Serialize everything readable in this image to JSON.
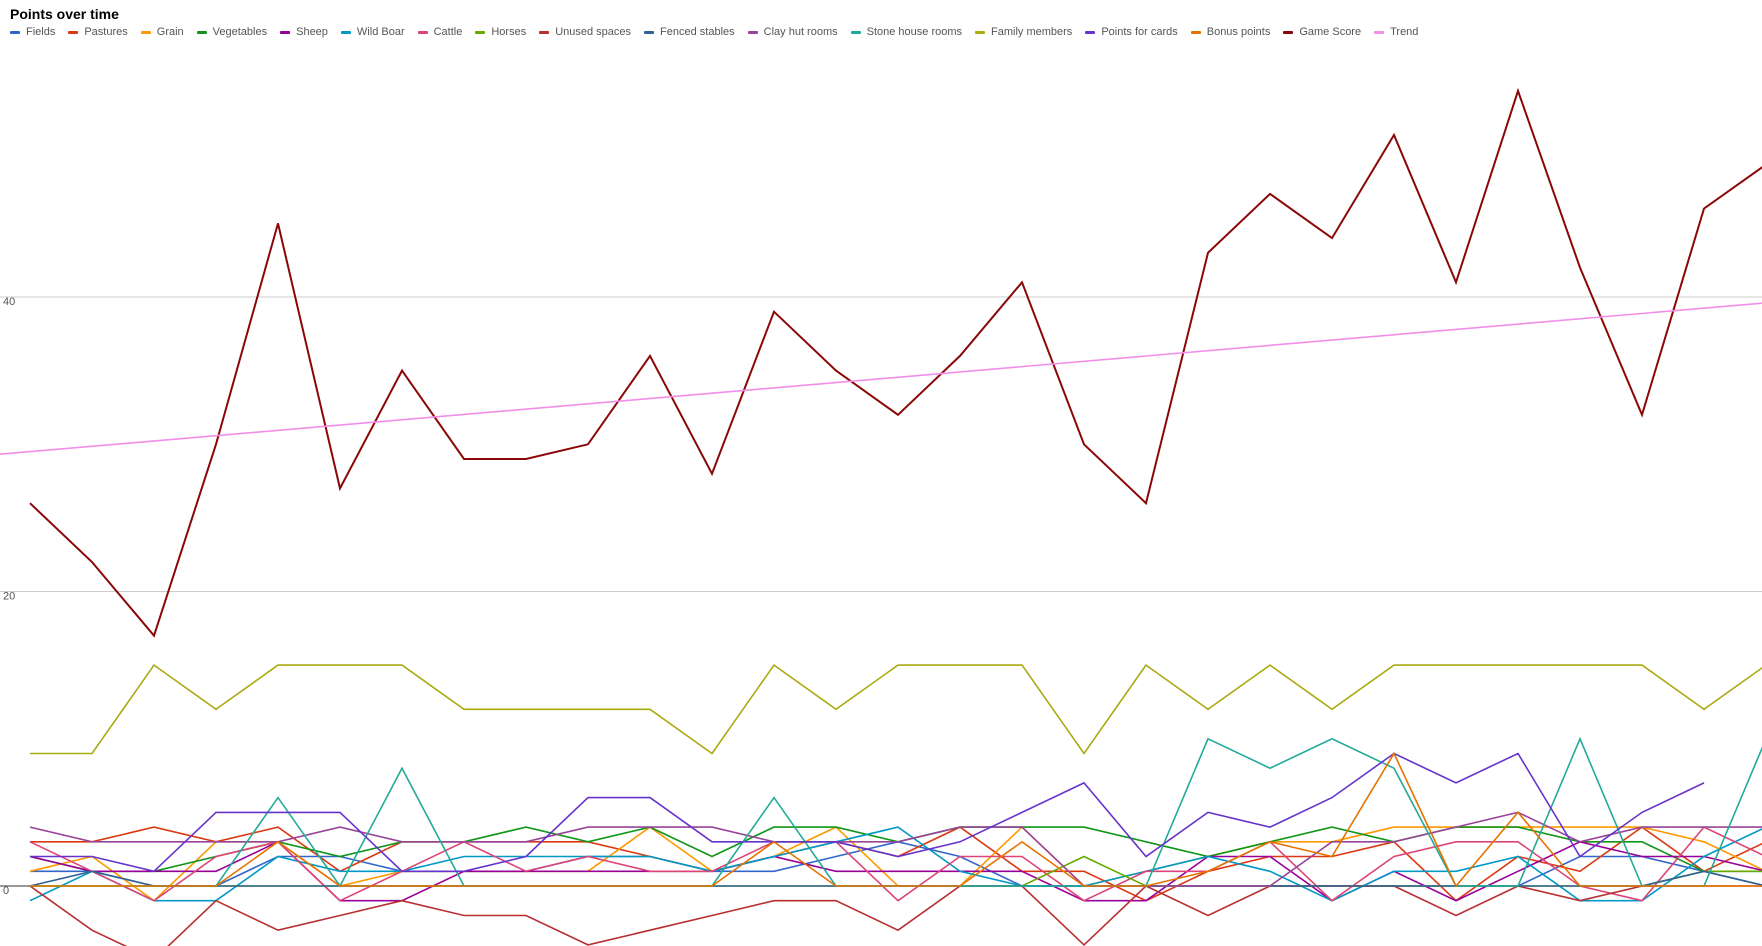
{
  "chart_data": {
    "type": "line",
    "title": "Points over time",
    "xlabel": "",
    "ylabel": "",
    "ylim": [
      -4,
      56
    ],
    "yticks": [
      0,
      20,
      40
    ],
    "grid": true,
    "legend_position": "top-left",
    "x": [
      1,
      2,
      3,
      4,
      5,
      6,
      7,
      8,
      9,
      10,
      11,
      12,
      13,
      14,
      15,
      16,
      17,
      18,
      19,
      20,
      21,
      22,
      23,
      24,
      25,
      26,
      27,
      28,
      29
    ],
    "series": [
      {
        "name": "Fields",
        "color": "#3366cc",
        "values": [
          1,
          1,
          0,
          0,
          2,
          2,
          1,
          1,
          1,
          2,
          2,
          1,
          1,
          2,
          3,
          2,
          0,
          0,
          0,
          0,
          0,
          0,
          0,
          0,
          0,
          2,
          2,
          1,
          0
        ]
      },
      {
        "name": "Pastures",
        "color": "#dc3912",
        "values": [
          3,
          3,
          4,
          3,
          4,
          1,
          3,
          3,
          3,
          3,
          2,
          1,
          2,
          3,
          2,
          4,
          1,
          1,
          -1,
          1,
          2,
          2,
          3,
          -1,
          2,
          1,
          4,
          1,
          3
        ]
      },
      {
        "name": "Grain",
        "color": "#ff9900",
        "values": [
          1,
          2,
          -1,
          3,
          3,
          0,
          1,
          1,
          1,
          1,
          4,
          1,
          2,
          4,
          0,
          0,
          4,
          0,
          1,
          2,
          3,
          3,
          4,
          4,
          4,
          4,
          4,
          3,
          1
        ]
      },
      {
        "name": "Vegetables",
        "color": "#109618",
        "values": [
          2,
          1,
          1,
          2,
          3,
          2,
          3,
          3,
          4,
          3,
          4,
          2,
          4,
          4,
          3,
          4,
          4,
          4,
          3,
          2,
          3,
          4,
          3,
          4,
          4,
          3,
          3,
          1,
          1
        ]
      },
      {
        "name": "Sheep",
        "color": "#990099",
        "values": [
          2,
          1,
          1,
          1,
          3,
          -1,
          -1,
          1,
          1,
          1,
          1,
          1,
          2,
          1,
          1,
          1,
          1,
          -1,
          -1,
          2,
          2,
          -1,
          1,
          -1,
          1,
          3,
          2,
          2,
          1
        ]
      },
      {
        "name": "Wild Boar",
        "color": "#0099c6",
        "values": [
          -1,
          1,
          -1,
          -1,
          2,
          1,
          1,
          2,
          2,
          2,
          2,
          1,
          2,
          3,
          4,
          1,
          0,
          0,
          1,
          2,
          1,
          -1,
          1,
          1,
          2,
          -1,
          -1,
          2,
          4
        ]
      },
      {
        "name": "Cattle",
        "color": "#dd4477",
        "values": [
          3,
          1,
          -1,
          2,
          3,
          -1,
          1,
          3,
          1,
          2,
          1,
          1,
          3,
          3,
          -1,
          2,
          2,
          -1,
          1,
          1,
          3,
          -1,
          2,
          3,
          3,
          0,
          -1,
          4,
          2
        ]
      },
      {
        "name": "Horses",
        "color": "#66aa00",
        "values": [
          0,
          0,
          0,
          0,
          0,
          0,
          0,
          0,
          0,
          0,
          0,
          0,
          0,
          0,
          0,
          0,
          0,
          2,
          0,
          0,
          0,
          0,
          0,
          0,
          0,
          0,
          0,
          1,
          1
        ]
      },
      {
        "name": "Unused spaces",
        "color": "#b82e2e",
        "values": [
          0,
          -3,
          -5,
          -1,
          -3,
          -2,
          -1,
          -2,
          -2,
          -4,
          -3,
          -2,
          -1,
          -1,
          -3,
          0,
          0,
          -4,
          0,
          -2,
          0,
          0,
          0,
          -2,
          0,
          -1,
          0,
          0,
          0
        ]
      },
      {
        "name": "Fenced stables",
        "color": "#316395",
        "values": [
          0,
          1,
          0,
          0,
          0,
          0,
          0,
          0,
          0,
          0,
          0,
          0,
          0,
          0,
          0,
          0,
          0,
          0,
          0,
          0,
          0,
          0,
          0,
          0,
          0,
          0,
          0,
          1,
          0
        ]
      },
      {
        "name": "Clay hut rooms",
        "color": "#994499",
        "values": [
          4,
          3,
          3,
          3,
          3,
          4,
          3,
          3,
          3,
          4,
          4,
          4,
          3,
          3,
          3,
          4,
          4,
          0,
          0,
          0,
          0,
          3,
          3,
          4,
          5,
          3,
          4,
          4,
          4
        ]
      },
      {
        "name": "Stone house rooms",
        "color": "#22aa99",
        "values": [
          0,
          0,
          0,
          0,
          6,
          0,
          8,
          0,
          0,
          0,
          0,
          0,
          6,
          0,
          0,
          0,
          0,
          0,
          0,
          10,
          8,
          10,
          8,
          0,
          0,
          10,
          0,
          0,
          10
        ]
      },
      {
        "name": "Family members",
        "color": "#aaaa11",
        "values": [
          9,
          9,
          15,
          12,
          15,
          15,
          15,
          12,
          12,
          12,
          12,
          9,
          15,
          12,
          15,
          15,
          15,
          9,
          15,
          12,
          15,
          12,
          15,
          15,
          15,
          15,
          15,
          12,
          15
        ]
      },
      {
        "name": "Points for cards",
        "color": "#6633cc",
        "values": [
          2,
          2,
          1,
          5,
          5,
          5,
          1,
          1,
          2,
          6,
          6,
          3,
          3,
          3,
          2,
          3,
          5,
          7,
          2,
          5,
          4,
          6,
          9,
          7,
          9,
          2,
          5,
          7,
          null
        ]
      },
      {
        "name": "Bonus points",
        "color": "#e67300",
        "values": [
          0,
          0,
          0,
          0,
          3,
          0,
          0,
          0,
          0,
          0,
          0,
          0,
          3,
          0,
          0,
          0,
          3,
          0,
          0,
          1,
          3,
          2,
          9,
          0,
          5,
          0,
          0,
          0,
          0
        ]
      },
      {
        "name": "Game Score",
        "color": "#8b0707",
        "values": [
          26,
          22,
          17,
          30,
          45,
          27,
          35,
          29,
          29,
          30,
          36,
          28,
          39,
          35,
          32,
          36,
          41,
          30,
          26,
          43,
          47,
          44,
          51,
          41,
          54,
          42,
          32,
          46,
          49
        ]
      },
      {
        "name": "Trend",
        "color": "#f28ee8",
        "values": [
          29.5,
          null,
          null,
          null,
          null,
          null,
          null,
          null,
          null,
          null,
          null,
          null,
          null,
          null,
          null,
          null,
          null,
          null,
          null,
          null,
          null,
          null,
          null,
          null,
          null,
          null,
          null,
          null,
          39.6
        ]
      }
    ]
  }
}
